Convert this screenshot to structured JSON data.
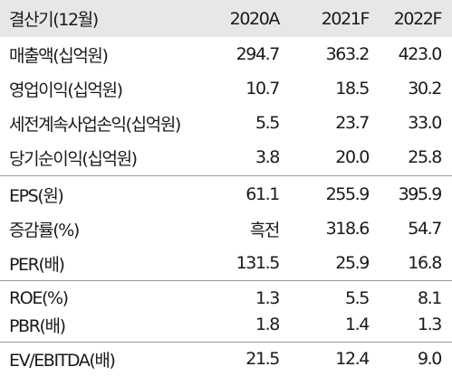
{
  "header": {
    "label": "결산기(12월)",
    "cols": [
      "2020A",
      "2021F",
      "2022F"
    ]
  },
  "rows": [
    {
      "label": "매출액(십억원)",
      "values": [
        "294.7",
        "363.2",
        "423.0"
      ]
    },
    {
      "label": "영업이익(십억원)",
      "values": [
        "10.7",
        "18.5",
        "30.2"
      ]
    },
    {
      "label": "세전계속사업손익(십억원)",
      "values": [
        "5.5",
        "23.7",
        "33.0"
      ]
    },
    {
      "label": "당기순이익(십억원)",
      "values": [
        "3.8",
        "20.0",
        "25.8"
      ]
    },
    {
      "label": "EPS(원)",
      "values": [
        "61.1",
        "255.9",
        "395.9"
      ]
    },
    {
      "label": "증감률(%)",
      "values": [
        "흑전",
        "318.6",
        "54.7"
      ]
    },
    {
      "label": "PER(배)",
      "values": [
        "131.5",
        "25.9",
        "16.8"
      ]
    },
    {
      "label": "ROE(%)",
      "values": [
        "1.3",
        "5.5",
        "8.1"
      ]
    },
    {
      "label": "PBR(배)",
      "values": [
        "1.8",
        "1.4",
        "1.3"
      ]
    },
    {
      "label": "EV/EBITDA(배)",
      "values": [
        "21.5",
        "12.4",
        "9.0"
      ]
    }
  ]
}
